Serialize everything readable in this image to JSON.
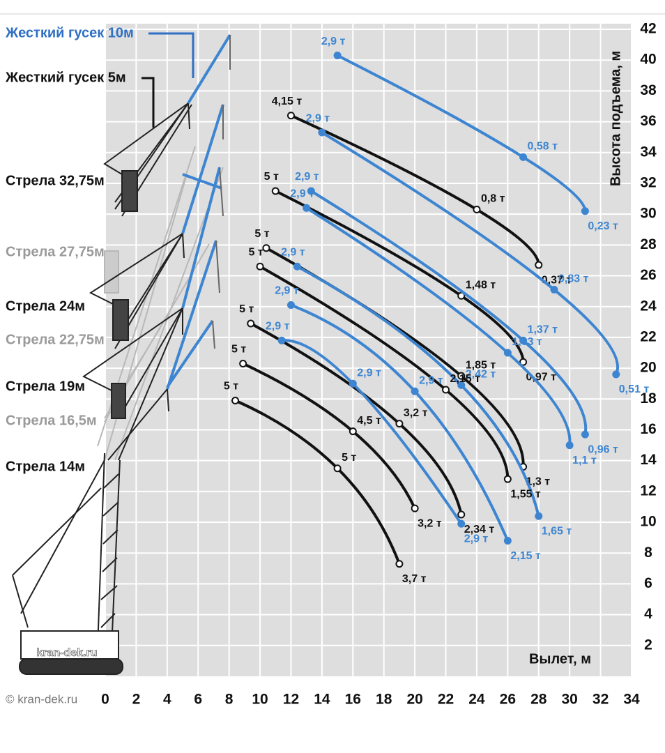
{
  "chart_data": {
    "type": "line",
    "x_label": "Вылет, м",
    "y_label": "Высота подъема, м",
    "xlim": [
      0,
      34
    ],
    "ylim": [
      0,
      42
    ],
    "xticks": [
      0,
      2,
      4,
      6,
      8,
      10,
      12,
      14,
      16,
      18,
      20,
      22,
      24,
      26,
      28,
      30,
      32,
      34
    ],
    "yticks": [
      2,
      4,
      6,
      8,
      10,
      12,
      14,
      16,
      18,
      20,
      22,
      24,
      26,
      28,
      30,
      32,
      34,
      36,
      38,
      40,
      42
    ],
    "grid": true,
    "series": [
      {
        "color": "#3d85d1",
        "x": [
          15,
          27,
          31
        ],
        "values": [
          40.3,
          33.7,
          30.2
        ],
        "point_labels": [
          "2,9 т",
          "0,58 т",
          "0,23 т"
        ]
      },
      {
        "color": "#111111",
        "x": [
          12,
          24,
          28
        ],
        "values": [
          36.4,
          30.3,
          26.7
        ],
        "point_labels": [
          "4,15 т",
          "0,8 т",
          "0,37 т"
        ]
      },
      {
        "color": "#3d85d1",
        "x": [
          14,
          29,
          33
        ],
        "values": [
          35.3,
          25.1,
          19.6
        ],
        "point_labels": [
          "2,9 т",
          "0,83 т",
          "0,51 т"
        ]
      },
      {
        "color": "#111111",
        "x": [
          11,
          23,
          27
        ],
        "values": [
          31.5,
          24.7,
          20.4
        ],
        "point_labels": [
          "5 т",
          "1,48 т",
          "0,97 т"
        ]
      },
      {
        "color": "#3d85d1",
        "x": [
          13.3,
          27,
          31
        ],
        "values": [
          31.5,
          21.8,
          15.7
        ],
        "point_labels": [
          "2,9 т",
          "1,37 т",
          "0,96 т"
        ]
      },
      {
        "color": "#3d85d1",
        "x": [
          13,
          26,
          30
        ],
        "values": [
          30.4,
          21,
          15
        ],
        "point_labels": [
          "2,9 т",
          "1,63 т",
          "1,1 т"
        ]
      },
      {
        "color": "#111111",
        "x": [
          10.4,
          23,
          27
        ],
        "values": [
          27.8,
          19.5,
          13.6
        ],
        "point_labels": [
          "5 т",
          "1,85 т",
          "1,3 т"
        ]
      },
      {
        "color": "#3d85d1",
        "x": [
          12.4,
          23,
          28
        ],
        "values": [
          26.6,
          18.9,
          10.4
        ],
        "point_labels": [
          "2,9 т",
          "2,42 т",
          "1,65 т"
        ]
      },
      {
        "color": "#111111",
        "x": [
          10,
          22,
          26
        ],
        "values": [
          26.6,
          18.6,
          12.8
        ],
        "point_labels": [
          "5 т",
          "2,15 т",
          "1,55 т"
        ]
      },
      {
        "color": "#3d85d1",
        "x": [
          12,
          20,
          26
        ],
        "values": [
          24.1,
          18.5,
          8.8
        ],
        "point_labels": [
          "2,9 т",
          "2,9 т",
          "2,15 т"
        ]
      },
      {
        "color": "#111111",
        "x": [
          9.4,
          19,
          23
        ],
        "values": [
          22.9,
          16.4,
          10.5
        ],
        "point_labels": [
          "5 т",
          "3,2 т",
          "2,34 т"
        ]
      },
      {
        "color": "#3d85d1",
        "x": [
          11.4,
          16,
          23
        ],
        "values": [
          21.8,
          19,
          9.9
        ],
        "point_labels": [
          "2,9 т",
          "2,9 т",
          "2,9 т"
        ]
      },
      {
        "color": "#111111",
        "x": [
          8.9,
          16,
          20
        ],
        "values": [
          20.3,
          15.9,
          10.9
        ],
        "point_labels": [
          "5 т",
          "4,5 т",
          "3,2 т"
        ]
      },
      {
        "color": "#111111",
        "x": [
          8.4,
          15,
          19
        ],
        "values": [
          17.9,
          13.5,
          7.3
        ],
        "point_labels": [
          "5 т",
          "5 т",
          "3,7 т"
        ]
      }
    ],
    "annotations": [
      {
        "text": "Жесткий гусек 10м",
        "color": "#2f6fc4"
      },
      {
        "text": "Жесткий гусек 5м",
        "color": "#111111"
      },
      {
        "text": "Стрела 32,75м",
        "color": "#111111"
      },
      {
        "text": "Стрела 27,75м",
        "color": "#9a9a9a"
      },
      {
        "text": "Стрела 24м",
        "color": "#111111"
      },
      {
        "text": "Стрела 22,75м",
        "color": "#9a9a9a"
      },
      {
        "text": "Стрела 19м",
        "color": "#111111"
      },
      {
        "text": "Стрела 16,5м",
        "color": "#9a9a9a"
      },
      {
        "text": "Стрела 14м",
        "color": "#111111"
      }
    ],
    "copyright": "© kran-dek.ru",
    "watermark": "kran-dek.ru"
  }
}
